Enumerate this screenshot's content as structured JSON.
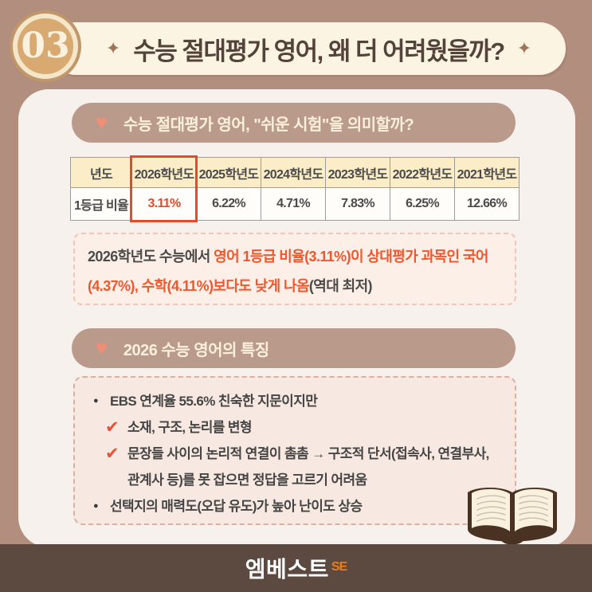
{
  "header": {
    "badge": "03",
    "title": "수능 절대평가 영어, 왜 더 어려웠을까?",
    "sparkle": "✦"
  },
  "icons": {
    "heart": "♥",
    "dot": "●",
    "check": "✔",
    "book": "open-book-icon"
  },
  "section1": {
    "heading": "수능 절대평가 영어, \"쉬운 시험\"을 의미할까?",
    "table": {
      "corner_label": "년도",
      "row_label": "1등급 비율",
      "columns": [
        "2026학년도",
        "2025학년도",
        "2024학년도",
        "2023학년도",
        "2022학년도",
        "2021학년도"
      ],
      "values": [
        "3.11%",
        "6.22%",
        "4.71%",
        "7.83%",
        "6.25%",
        "12.66%"
      ],
      "highlight_index": 0
    },
    "note": {
      "prefix": "2026학년도 수능에서 ",
      "highlight": "영어 1등급 비율(3.11%)이 상대평가 과목인 국어(4.37%), 수학(4.11%)보다도 낮게 나옴",
      "suffix": "(역대 최저)"
    }
  },
  "section2": {
    "heading": "2026 수능 영어의 특징",
    "bullets": [
      {
        "type": "dot",
        "text": "EBS 연계율 55.6% 친숙한 지문이지만"
      },
      {
        "type": "check",
        "text": "소재, 구조, 논리를 변형"
      },
      {
        "type": "check",
        "text": "문장들 사이의 논리적 연결이 촘촘 → 구조적 단서(접속사, 연결부사, 관계사 등)를 못 잡으면 정답을 고르기 어려움"
      },
      {
        "type": "dot",
        "text": "선택지의 매력도(오답 유도)가 높아 난이도 상승"
      }
    ]
  },
  "footer": {
    "logo_text": "엠베스트",
    "logo_mark": "SE"
  },
  "colors": {
    "outer_background": "#b18e7d",
    "card_background": "#f7f1ed",
    "title_pill": "#fcf4e2",
    "badge_fill": "#d8a971",
    "section_pill": "#ba9b8b",
    "heart": "#f28e74",
    "table_header": "#fbedc7",
    "highlight_red": "#e64a2a",
    "note_orange": "#f3562c",
    "footer_bar": "#5c4a40",
    "logo_orange": "#ef7d15"
  }
}
